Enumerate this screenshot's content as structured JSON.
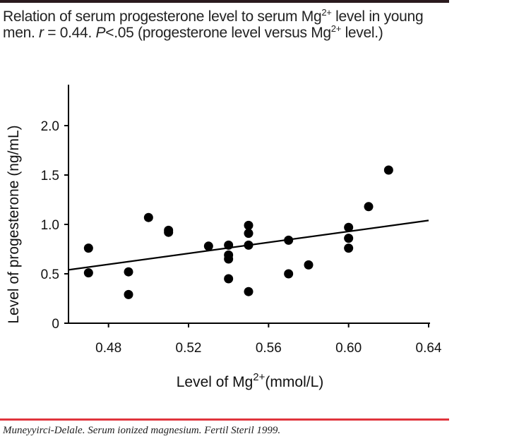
{
  "caption": {
    "p1": "Relation of serum progesterone level to serum Mg",
    "sup1": "2+",
    "p2": " level in young men. ",
    "r": "r",
    "p3": " = 0.44. ",
    "P": "P",
    "p4": "<.05 (progesterone level versus Mg",
    "sup2": "2+",
    "p5": " level.)"
  },
  "footer": "Muneyyirci-Delale.  Serum ionized magnesium.  Fertil Steril 1999.",
  "colors": {
    "top_bar": "#2a1a1e",
    "footer_rule": "#e0343c",
    "marks": "#000000"
  },
  "chart_data": {
    "type": "scatter",
    "xlabel": "Level of Mg",
    "xlabel_sup": "2+",
    "xlabel_unit": "(mmol/L)",
    "ylabel": "Level of progesterone (ng/mL)",
    "xlim": [
      0.46,
      0.64
    ],
    "ylim": [
      0,
      2.3
    ],
    "xticks": [
      "0.48",
      "0.52",
      "0.56",
      "0.60",
      "0.64"
    ],
    "yticks": [
      "0",
      "0.5",
      "1.0",
      "1.5",
      "2.0"
    ],
    "grid": false,
    "points": [
      [
        0.47,
        0.76
      ],
      [
        0.47,
        0.51
      ],
      [
        0.49,
        0.52
      ],
      [
        0.49,
        0.29
      ],
      [
        0.5,
        1.07
      ],
      [
        0.51,
        0.94
      ],
      [
        0.51,
        0.92
      ],
      [
        0.53,
        0.78
      ],
      [
        0.54,
        0.79
      ],
      [
        0.54,
        0.69
      ],
      [
        0.54,
        0.65
      ],
      [
        0.54,
        0.45
      ],
      [
        0.55,
        0.99
      ],
      [
        0.55,
        0.91
      ],
      [
        0.55,
        0.79
      ],
      [
        0.55,
        0.32
      ],
      [
        0.57,
        0.84
      ],
      [
        0.57,
        0.5
      ],
      [
        0.58,
        0.59
      ],
      [
        0.6,
        0.97
      ],
      [
        0.6,
        0.86
      ],
      [
        0.6,
        0.76
      ],
      [
        0.61,
        1.18
      ],
      [
        0.62,
        1.55
      ]
    ],
    "regression_line": {
      "x": [
        0.46,
        0.64
      ],
      "y": [
        0.54,
        1.04
      ]
    }
  }
}
